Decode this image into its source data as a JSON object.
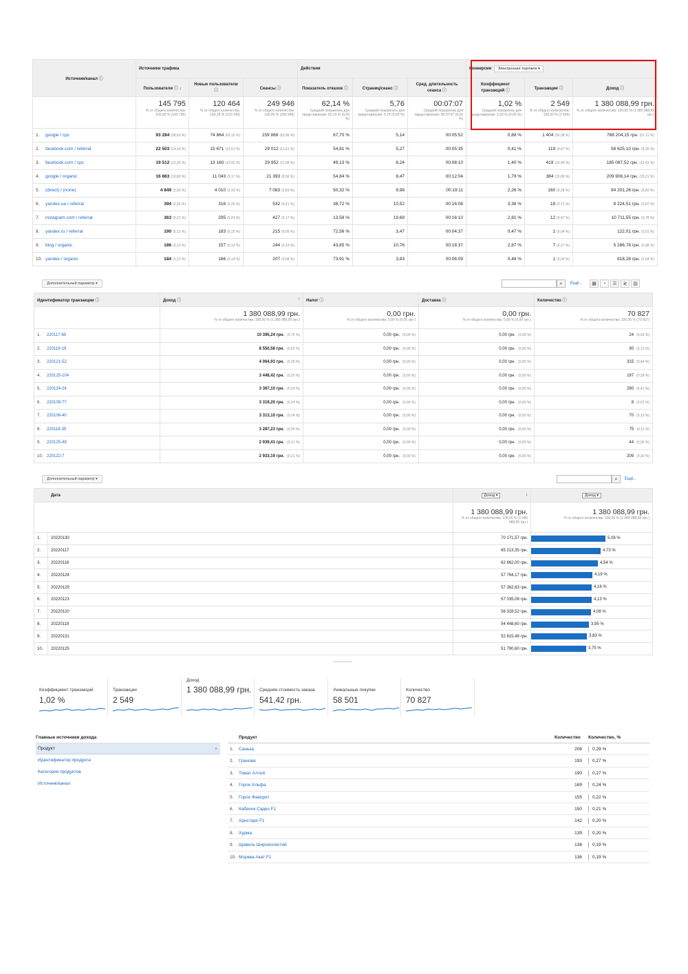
{
  "table1": {
    "group_sources": "Источники трафика",
    "group_actions": "Действия",
    "group_conversions": "Конверсии",
    "conversion_select": "Электронная торговля",
    "columns": {
      "source": "Источник/канал",
      "users": "Пользователи",
      "new_users": "Новые пользователи",
      "sessions": "Сеансы",
      "bounce": "Показатель отказов",
      "pages": "Страниц/сеанс",
      "duration": "Сред. длительность сеанса",
      "conv_rate": "Коэффициент транзакций",
      "transactions": "Транзакции",
      "revenue": "Доход"
    },
    "totals": {
      "users": "145 795",
      "users_sub": "% от общего количества: 100,00 % (145 795)",
      "new_users": "120 464",
      "new_users_sub": "% от общего количества: 100,18 % (120 249)",
      "sessions": "249 946",
      "sessions_sub": "% от общего количества: 100,00 % (249 946)",
      "bounce": "62,14 %",
      "bounce_sub": "Средний показатель для представления: 62,14 % (0,00 %)",
      "pages": "5,76",
      "pages_sub": "Средний показатель для представления: 5,76 (0,00 %)",
      "duration": "00:07:07",
      "duration_sub": "Средний показатель для представления: 00:07:07 (0,00 %)",
      "conv_rate": "1,02 %",
      "conv_rate_sub": "Средний показатель для представления: 1,02 % (0,00 %)",
      "transactions": "2 549",
      "transactions_sub": "% от общего количества: 100,00 % (2 549)",
      "revenue": "1 380 088,99 грн.",
      "revenue_sub": "% от общего количества: 100,00 % (1 380 088,99 грн.)"
    },
    "rows": [
      {
        "i": "1.",
        "src": "google / cpc",
        "u": "93 284",
        "up": "(58,63 %)",
        "nu": "74 864",
        "nup": "(62,15 %)",
        "s": "159 868",
        "sp": "(63,96 %)",
        "b": "67,70 %",
        "p": "5,14",
        "d": "00:05:52",
        "c": "0,88 %",
        "t": "1 404",
        "tp": "(55,08 %)",
        "r": "788 204,15 грн.",
        "rp": "(57,11 %)"
      },
      {
        "i": "2.",
        "src": "facebook.com / referral",
        "u": "22 503",
        "up": "(14,14 %)",
        "nu": "15 671",
        "nup": "(13,01 %)",
        "s": "29 012",
        "sp": "(11,61 %)",
        "b": "54,81 %",
        "p": "5,27",
        "d": "00:05:35",
        "c": "0,41 %",
        "t": "119",
        "tp": "(4,67 %)",
        "r": "58 625,10 грн.",
        "rp": "(4,25 %)"
      },
      {
        "i": "3.",
        "src": "facebook.com / cpc",
        "u": "19 512",
        "up": "(12,26 %)",
        "nu": "13 160",
        "nup": "(10,92 %)",
        "s": "29 952",
        "sp": "(11,98 %)",
        "b": "49,13 %",
        "p": "6,24",
        "d": "00:08:10",
        "c": "1,40 %",
        "t": "419",
        "tp": "(16,44 %)",
        "r": "185 067,52 грн.",
        "rp": "(13,41 %)"
      },
      {
        "i": "4.",
        "src": "google / organic",
        "u": "16 863",
        "up": "(10,60 %)",
        "nu": "11 043",
        "nup": "(9,17 %)",
        "s": "21 393",
        "sp": "(8,56 %)",
        "b": "54,84 %",
        "p": "8,47",
        "d": "00:12:04",
        "c": "1,79 %",
        "t": "384",
        "tp": "(15,06 %)",
        "r": "209 906,14 грн.",
        "rp": "(15,21 %)"
      },
      {
        "i": "5.",
        "src": "(direct) / (none)",
        "u": "4 849",
        "up": "(3,05 %)",
        "nu": "4 010",
        "nup": "(3,33 %)",
        "s": "7 083",
        "sp": "(2,83 %)",
        "b": "50,32 %",
        "p": "9,98",
        "d": "00:19:11",
        "c": "2,26 %",
        "t": "160",
        "tp": "(6,28 %)",
        "r": "94 201,26 грн.",
        "rp": "(6,83 %)"
      },
      {
        "i": "6.",
        "src": "yandex.ua / referral",
        "u": "394",
        "up": "(0,25 %)",
        "nu": "316",
        "nup": "(0,26 %)",
        "s": "532",
        "sp": "(0,21 %)",
        "b": "38,72 %",
        "p": "10,52",
        "d": "00:16:08",
        "c": "3,38 %",
        "t": "18",
        "tp": "(0,71 %)",
        "r": "9 224,51 грн.",
        "rp": "(0,67 %)"
      },
      {
        "i": "7.",
        "src": "instagram.com / referral",
        "u": "363",
        "up": "(0,23 %)",
        "nu": "295",
        "nup": "(0,24 %)",
        "s": "427",
        "sp": "(0,17 %)",
        "b": "13,58 %",
        "p": "19,69",
        "d": "00:16:10",
        "c": "2,81 %",
        "t": "12",
        "tp": "(0,47 %)",
        "r": "10 711,55 грн.",
        "rp": "(0,78 %)"
      },
      {
        "i": "8.",
        "src": "yandex.ru / referral",
        "u": "190",
        "up": "(0,12 %)",
        "nu": "183",
        "nup": "(0,15 %)",
        "s": "215",
        "sp": "(0,09 %)",
        "b": "72,56 %",
        "p": "3,47",
        "d": "00:04:37",
        "c": "0,47 %",
        "t": "1",
        "tp": "(0,04 %)",
        "r": "122,01 грн.",
        "rp": "(0,01 %)"
      },
      {
        "i": "9.",
        "src": "bing / organic",
        "u": "186",
        "up": "(0,12 %)",
        "nu": "157",
        "nup": "(0,13 %)",
        "s": "244",
        "sp": "(0,10 %)",
        "b": "43,85 %",
        "p": "10,76",
        "d": "00:18:37",
        "c": "2,87 %",
        "t": "7",
        "tp": "(0,27 %)",
        "r": "5 286,78 грн.",
        "rp": "(0,38 %)"
      },
      {
        "i": "10.",
        "src": "yandex / organic",
        "u": "184",
        "up": "(0,12 %)",
        "nu": "166",
        "nup": "(0,14 %)",
        "s": "207",
        "sp": "(0,08 %)",
        "b": "73,91 %",
        "p": "3,83",
        "d": "00:06:09",
        "c": "0,48 %",
        "t": "1",
        "tp": "(0,04 %)",
        "r": "618,28 грн.",
        "rp": "(0,04 %)"
      }
    ]
  },
  "toolbar": {
    "secondary_dim": "Дополнительный параметр",
    "more": "Ещё..."
  },
  "table2": {
    "columns": {
      "id": "Идентификатор транзакции",
      "revenue": "Доход",
      "tax": "Налог",
      "shipping": "Доставка",
      "qty": "Количество"
    },
    "totals": {
      "revenue": "1 380 088,99 грн.",
      "revenue_sub": "% от общего количества: 100,00 % (1 380 088,99 грн.)",
      "tax": "0,00 грн.",
      "tax_sub": "% от общего количества: 0,00 % (0,00 грн.)",
      "shipping": "0,00 грн.",
      "shipping_sub": "% от общего количества: 0,00 % (0,00 грн.)",
      "qty": "70 827",
      "qty_sub": "% от общего количества: 100,00 % (70 827)"
    },
    "rows": [
      {
        "i": "1.",
        "id": "220117-65",
        "r": "10 395,24 грн.",
        "rp": "(0,75 %)",
        "q": "24",
        "qp": "(0,03 %)"
      },
      {
        "i": "2.",
        "id": "220119-19",
        "r": "8 550,58 грн.",
        "rp": "(0,62 %)",
        "q": "90",
        "qp": "(0,13 %)"
      },
      {
        "i": "3.",
        "id": "220121-52",
        "r": "4 064,93 грн.",
        "rp": "(0,29 %)",
        "q": "315",
        "qp": "(0,44 %)"
      },
      {
        "i": "4.",
        "id": "220125-104",
        "r": "3 448,42 грн.",
        "rp": "(0,25 %)",
        "q": "197",
        "qp": "(0,28 %)"
      },
      {
        "i": "5.",
        "id": "220124-24",
        "r": "3 367,10 грн.",
        "rp": "(0,24 %)",
        "q": "290",
        "qp": "(0,41 %)"
      },
      {
        "i": "6.",
        "id": "220109-77",
        "r": "3 319,20 грн.",
        "rp": "(0,24 %)",
        "q": "8",
        "qp": "(0,01 %)"
      },
      {
        "i": "7.",
        "id": "220106-40",
        "r": "3 313,10 грн.",
        "rp": "(0,24 %)",
        "q": "70",
        "qp": "(0,10 %)"
      },
      {
        "i": "8.",
        "id": "220118-35",
        "r": "3 287,23 грн.",
        "rp": "(0,24 %)",
        "q": "75",
        "qp": "(0,11 %)"
      },
      {
        "i": "9.",
        "id": "220125-49",
        "r": "2 939,41 грн.",
        "rp": "(0,21 %)",
        "q": "44",
        "qp": "(0,06 %)"
      },
      {
        "i": "10.",
        "id": "220122-7",
        "r": "2 933,19 грн.",
        "rp": "(0,21 %)",
        "q": "209",
        "qp": "(0,30 %)"
      }
    ],
    "zero_value": "0,00 грн.",
    "zero_pct": "(0,00 %)"
  },
  "table3": {
    "col_date": "Дата",
    "select1": "Доход",
    "select2": "Доход",
    "totals": {
      "left": "1 380 088,99 грн.",
      "left_sub": "% от общего количества: 100,00 % (1 380 088,99 грн.)",
      "right": "1 380 088,99 грн.",
      "right_sub": "% от общего количества: 100,00 % (1 380 088,99 грн.)"
    },
    "rows": [
      {
        "i": "1.",
        "d": "20220130",
        "v": "70 171,57 грн.",
        "pct": 5.08,
        "pl": "5,08 %"
      },
      {
        "i": "2.",
        "d": "20220117",
        "v": "65 213,35 грн.",
        "pct": 4.73,
        "pl": "4,73 %"
      },
      {
        "i": "3.",
        "d": "20220116",
        "v": "62 662,00 грн.",
        "pct": 4.54,
        "pl": "4,54 %"
      },
      {
        "i": "4.",
        "d": "20220128",
        "v": "57 764,17 грн.",
        "pct": 4.19,
        "pl": "4,19 %"
      },
      {
        "i": "5.",
        "d": "20220129",
        "v": "57 362,63 грн.",
        "pct": 4.16,
        "pl": "4,16 %"
      },
      {
        "i": "6.",
        "d": "20220123",
        "v": "57 035,08 грн.",
        "pct": 4.13,
        "pl": "4,13 %"
      },
      {
        "i": "7.",
        "d": "20220120",
        "v": "56 328,52 грн.",
        "pct": 4.08,
        "pl": "4,08 %"
      },
      {
        "i": "8.",
        "d": "20220119",
        "v": "54 448,60 грн.",
        "pct": 3.95,
        "pl": "3,95 %"
      },
      {
        "i": "9.",
        "d": "20220131",
        "v": "52 815,48 грн.",
        "pct": 3.83,
        "pl": "3,83 %"
      },
      {
        "i": "10.",
        "d": "20220125",
        "v": "51 790,60 грн.",
        "pct": 3.75,
        "pl": "3,75 %"
      }
    ]
  },
  "kpis": [
    {
      "label": "Коэффициент транзакций",
      "value": "1,02 %"
    },
    {
      "label": "Транзакции",
      "value": "2 549"
    },
    {
      "label": "Доход",
      "value": "1 380 088,99 грн."
    },
    {
      "label": "Средняя стоимость заказа",
      "value": "541,42 грн."
    },
    {
      "label": "Уникальные покупки",
      "value": "58 501"
    },
    {
      "label": "Количество",
      "value": "70 827"
    }
  ],
  "sources": {
    "title": "Главные источники дохода",
    "selected": "Продукт",
    "links": [
      "Идентификатор продукта",
      "Категория продуктов",
      "Источник/канал"
    ]
  },
  "products": {
    "col_product": "Продукт",
    "col_qty": "Количество",
    "col_pct": "Количество, %",
    "rows": [
      {
        "i": "1.",
        "n": "Санька",
        "q": "208",
        "p": "0,29 %"
      },
      {
        "i": "2.",
        "n": "Гранова",
        "q": "193",
        "p": "0,27 %"
      },
      {
        "i": "3.",
        "n": "Томат Алтей",
        "q": "190",
        "p": "0,27 %"
      },
      {
        "i": "4.",
        "n": "Горох Альфа",
        "q": "169",
        "p": "0,24 %"
      },
      {
        "i": "5.",
        "n": "Горох Фаворит",
        "q": "155",
        "p": "0,22 %"
      },
      {
        "i": "6.",
        "n": "Кабачок Садко F1",
        "q": "150",
        "p": "0,21 %"
      },
      {
        "i": "7.",
        "n": "Аристарх F1",
        "q": "142",
        "p": "0,20 %"
      },
      {
        "i": "8.",
        "n": "Хурма",
        "q": "139",
        "p": "0,20 %"
      },
      {
        "i": "9.",
        "n": "Щавель Широколистий",
        "q": "138",
        "p": "0,19 %"
      },
      {
        "i": "10.",
        "n": "Морква Акат F1",
        "q": "136",
        "p": "0,19 %"
      }
    ]
  }
}
